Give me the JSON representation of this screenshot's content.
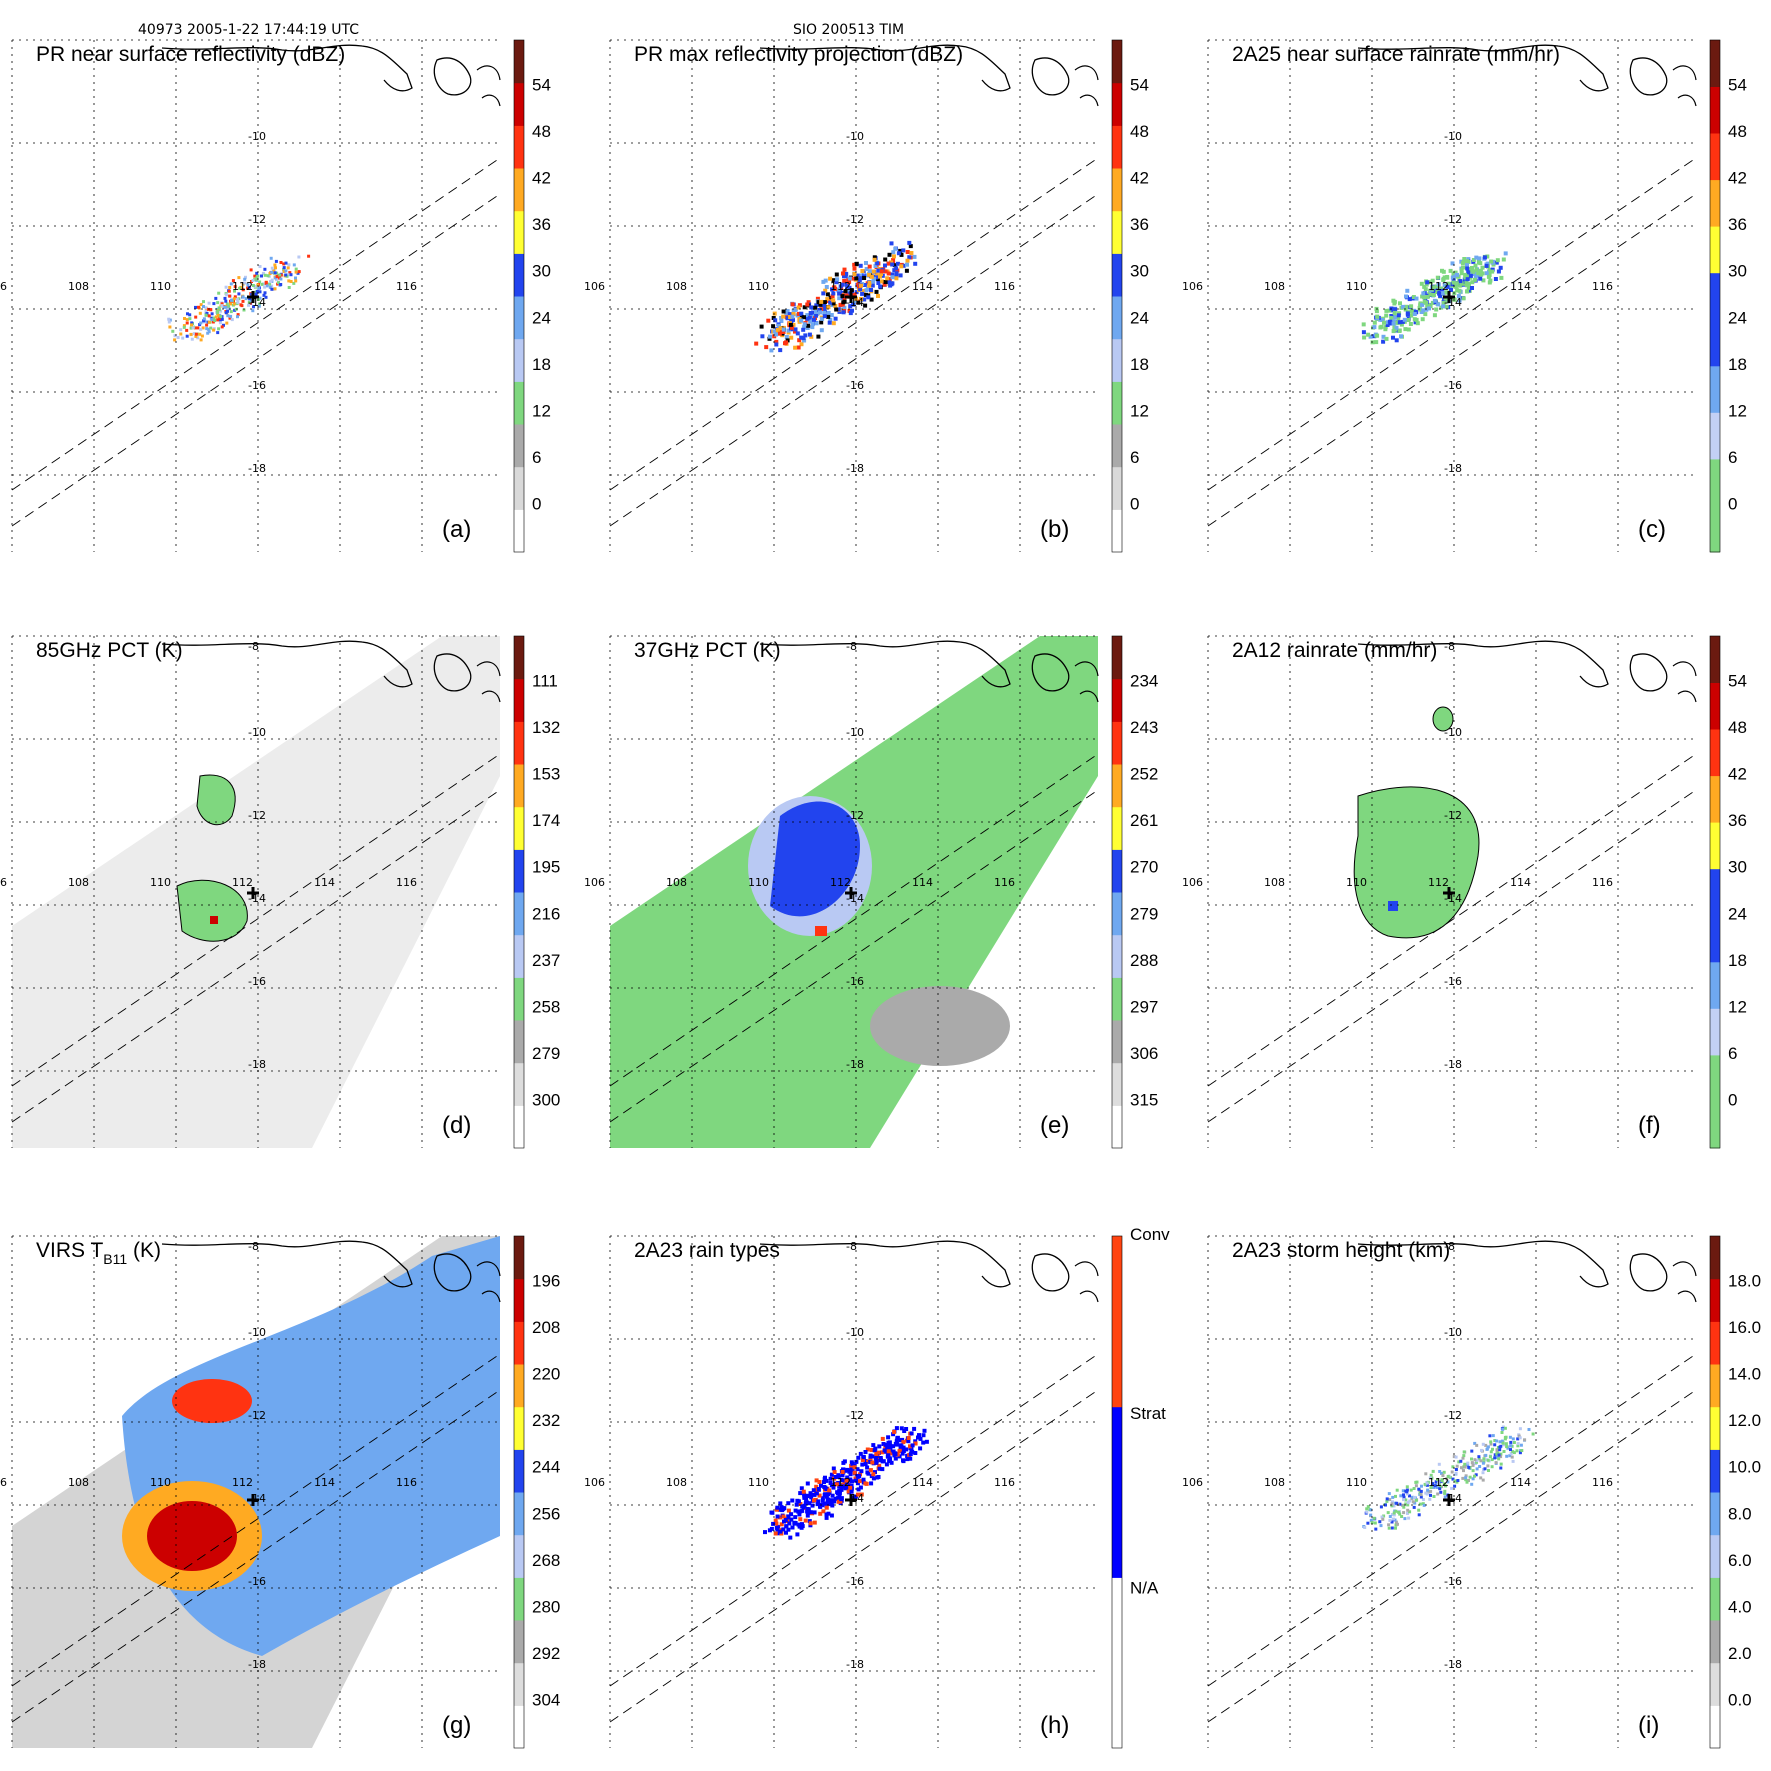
{
  "header": {
    "orbit_time": "40973 2005-1-22 17:44:19 UTC",
    "storm": "SIO 200513 TIM"
  },
  "common": {
    "lon_labels": [
      "106",
      "108",
      "110",
      "112",
      "114",
      "116"
    ],
    "lat_labels_top": [
      "-10",
      "-12",
      "-14",
      "-16",
      "-18"
    ],
    "lat_labels_full": [
      "-8",
      "-10",
      "-12",
      "-14",
      "-16",
      "-18"
    ]
  },
  "panels": [
    {
      "id": "a",
      "title": "PR near surface reflectivity (dBZ)",
      "tag": "(a)",
      "kind": "ref_near",
      "colorbar": {
        "colors": [
          "#ffffff",
          "#d9d9d9",
          "#aaaaaa",
          "#7fd77f",
          "#b9c9f3",
          "#6fa8f0",
          "#2244ee",
          "#ffff33",
          "#ffaa22",
          "#ff3311",
          "#cc0000",
          "#6b1a10"
        ],
        "labels": [
          "54",
          "48",
          "42",
          "36",
          "30",
          "24",
          "18",
          "12",
          "6",
          "0"
        ],
        "label_pos": [
          1,
          2,
          3,
          4,
          5,
          6,
          7,
          8,
          9,
          10
        ]
      }
    },
    {
      "id": "b",
      "title": "PR max reflectivity projection (dBZ)",
      "tag": "(b)",
      "kind": "ref_max",
      "colorbar": {
        "colors": [
          "#ffffff",
          "#d9d9d9",
          "#aaaaaa",
          "#7fd77f",
          "#b9c9f3",
          "#6fa8f0",
          "#2244ee",
          "#ffff33",
          "#ffaa22",
          "#ff3311",
          "#cc0000",
          "#6b1a10"
        ],
        "labels": [
          "54",
          "48",
          "42",
          "36",
          "30",
          "24",
          "18",
          "12",
          "6",
          "0"
        ],
        "label_pos": [
          1,
          2,
          3,
          4,
          5,
          6,
          7,
          8,
          9,
          10
        ]
      }
    },
    {
      "id": "c",
      "title": "2A25 near surface rainrate (mm/hr)",
      "tag": "(c)",
      "kind": "rain25",
      "colorbar": {
        "colors": [
          "#7fd77f",
          "#7fd77f",
          "#c3d0f5",
          "#6fa8f0",
          "#2244ee",
          "#2244ee",
          "#ffff33",
          "#ffaa22",
          "#ff3311",
          "#cc0000",
          "#6b1a10"
        ],
        "labels": [
          "54",
          "48",
          "42",
          "36",
          "30",
          "24",
          "18",
          "12",
          "6",
          "0"
        ],
        "label_pos": [
          1,
          2,
          3,
          4,
          5,
          6,
          7,
          8,
          9,
          10
        ]
      }
    },
    {
      "id": "d",
      "title": "85GHz PCT (K)",
      "tag": "(d)",
      "kind": "pct85",
      "colorbar": {
        "colors": [
          "#ffffff",
          "#dddddd",
          "#aaaaaa",
          "#7fd77f",
          "#b9c9f3",
          "#6fa8f0",
          "#2244ee",
          "#ffff33",
          "#ffaa22",
          "#ff3311",
          "#cc0000",
          "#6b1a10"
        ],
        "labels": [
          "111",
          "132",
          "153",
          "174",
          "195",
          "216",
          "237",
          "258",
          "279",
          "300"
        ],
        "label_pos": [
          1,
          2,
          3,
          4,
          5,
          6,
          7,
          8,
          9,
          10
        ]
      }
    },
    {
      "id": "e",
      "title": "37GHz PCT (K)",
      "tag": "(e)",
      "kind": "pct37",
      "colorbar": {
        "colors": [
          "#ffffff",
          "#dddddd",
          "#aaaaaa",
          "#7fd77f",
          "#b9c9f3",
          "#6fa8f0",
          "#2244ee",
          "#ffff33",
          "#ffaa22",
          "#ff3311",
          "#cc0000",
          "#6b1a10"
        ],
        "labels": [
          "234",
          "243",
          "252",
          "261",
          "270",
          "279",
          "288",
          "297",
          "306",
          "315"
        ],
        "label_pos": [
          1,
          2,
          3,
          4,
          5,
          6,
          7,
          8,
          9,
          10
        ]
      }
    },
    {
      "id": "f",
      "title": "2A12 rainrate (mm/hr)",
      "tag": "(f)",
      "kind": "rain12",
      "colorbar": {
        "colors": [
          "#7fd77f",
          "#7fd77f",
          "#c3d0f5",
          "#6fa8f0",
          "#2244ee",
          "#2244ee",
          "#ffff33",
          "#ffaa22",
          "#ff3311",
          "#cc0000",
          "#6b1a10"
        ],
        "labels": [
          "54",
          "48",
          "42",
          "36",
          "30",
          "24",
          "18",
          "12",
          "6",
          "0"
        ],
        "label_pos": [
          1,
          2,
          3,
          4,
          5,
          6,
          7,
          8,
          9,
          10
        ]
      }
    },
    {
      "id": "g",
      "title_main": "VIRS T",
      "title_sub": "B11",
      "title_tail": " (K)",
      "tag": "(g)",
      "kind": "virs",
      "colorbar": {
        "colors": [
          "#ffffff",
          "#dddddd",
          "#aaaaaa",
          "#7fd77f",
          "#b9c9f3",
          "#6fa8f0",
          "#2244ee",
          "#ffff33",
          "#ffaa22",
          "#ff3311",
          "#cc0000",
          "#6b1a10"
        ],
        "labels": [
          "196",
          "208",
          "220",
          "232",
          "244",
          "256",
          "268",
          "280",
          "292",
          "304"
        ],
        "label_pos": [
          1,
          2,
          3,
          4,
          5,
          6,
          7,
          8,
          9,
          10
        ]
      }
    },
    {
      "id": "h",
      "title": "2A23 rain types",
      "tag": "(h)",
      "kind": "raintype",
      "colorbar": {
        "colors": [
          "#ffffff",
          "#0000ff",
          "#ff4411"
        ],
        "labels": [
          "Conv",
          "Strat",
          "N/A"
        ],
        "label_pos": [
          0,
          1,
          2
        ]
      }
    },
    {
      "id": "i",
      "title": "2A23 storm height (km)",
      "tag": "(i)",
      "kind": "height",
      "colorbar": {
        "colors": [
          "#ffffff",
          "#dddddd",
          "#aaaaaa",
          "#7fd77f",
          "#b9c9f3",
          "#6fa8f0",
          "#2244ee",
          "#ffff33",
          "#ffaa22",
          "#ff3311",
          "#cc0000",
          "#6b1a10"
        ],
        "labels": [
          "18.0",
          "16.0",
          "14.0",
          "12.0",
          "10.0",
          "8.0",
          "6.0",
          "4.0",
          "2.0",
          "0.0"
        ],
        "label_pos": [
          1,
          2,
          3,
          4,
          5,
          6,
          7,
          8,
          9,
          10
        ]
      }
    }
  ]
}
